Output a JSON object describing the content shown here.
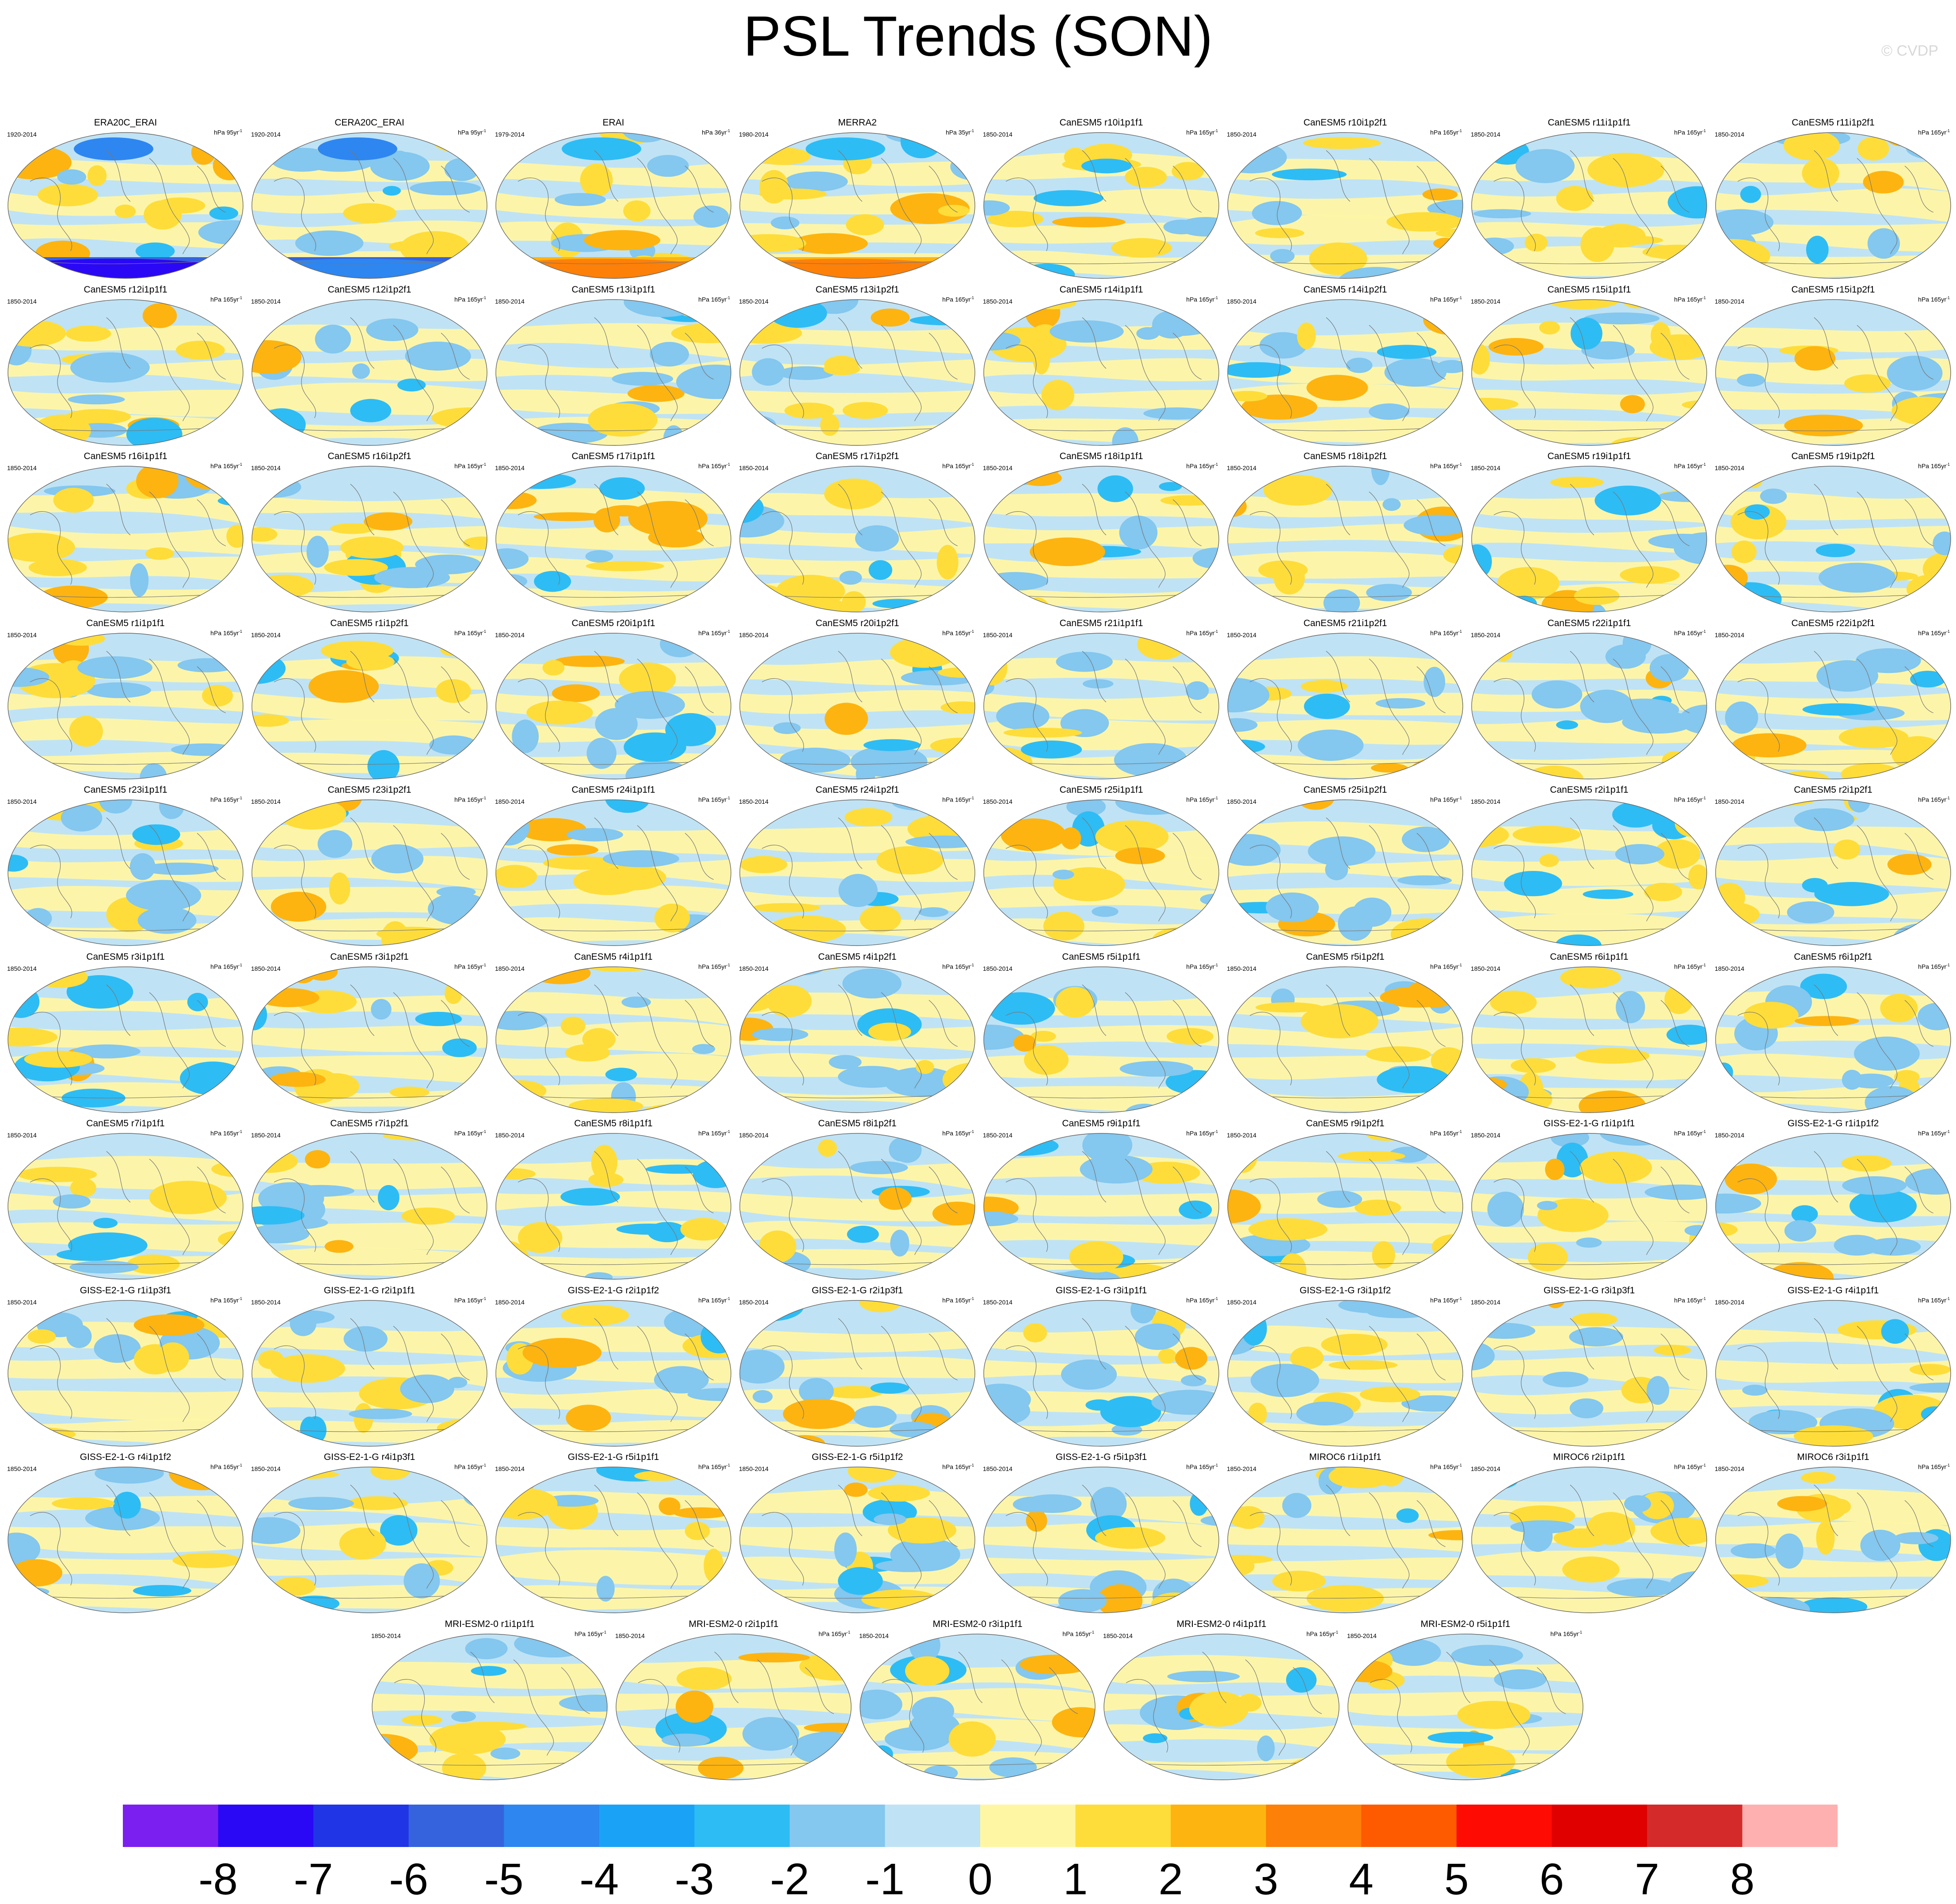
{
  "chart_data": {
    "type": "heatmap",
    "title": "PSL Trends (SON)",
    "projection": "global-map",
    "copyright": "© CVDP",
    "colorbar": {
      "labels": [
        "-8",
        "-7",
        "-6",
        "-5",
        "-4",
        "-3",
        "-2",
        "-1",
        "0",
        "1",
        "2",
        "3",
        "4",
        "5",
        "6",
        "7",
        "8"
      ],
      "colors": [
        "#7b1ff0",
        "#2a08f5",
        "#1f35e6",
        "#3563dd",
        "#2e86f0",
        "#1aa2f7",
        "#2ebcf4",
        "#84c7ef",
        "#bfe3f5",
        "#fff6a4",
        "#fedd3a",
        "#fdb410",
        "#fd8008",
        "#fe5a00",
        "#fe0b04",
        "#e00000",
        "#d42a2a",
        "#feb0b0"
      ]
    },
    "panels": [
      {
        "title": "ERA20C_ERAI",
        "years": "1920-2014",
        "units": "hPa 95yr",
        "sup": "-1"
      },
      {
        "title": "CERA20C_ERAI",
        "years": "1920-2014",
        "units": "hPa 95yr",
        "sup": "-1"
      },
      {
        "title": "ERAI",
        "years": "1979-2014",
        "units": "hPa 36yr",
        "sup": "-1"
      },
      {
        "title": "MERRA2",
        "years": "1980-2014",
        "units": "hPa 35yr",
        "sup": "-1"
      },
      {
        "title": "CanESM5 r10i1p1f1",
        "years": "1850-2014",
        "units": "hPa 165yr",
        "sup": "-1"
      },
      {
        "title": "CanESM5 r10i1p2f1",
        "years": "1850-2014",
        "units": "hPa 165yr",
        "sup": "-1"
      },
      {
        "title": "CanESM5 r11i1p1f1",
        "years": "1850-2014",
        "units": "hPa 165yr",
        "sup": "-1"
      },
      {
        "title": "CanESM5 r11i1p2f1",
        "years": "1850-2014",
        "units": "hPa 165yr",
        "sup": "-1"
      },
      {
        "title": "CanESM5 r12i1p1f1",
        "years": "1850-2014",
        "units": "hPa 165yr",
        "sup": "-1"
      },
      {
        "title": "CanESM5 r12i1p2f1",
        "years": "1850-2014",
        "units": "hPa 165yr",
        "sup": "-1"
      },
      {
        "title": "CanESM5 r13i1p1f1",
        "years": "1850-2014",
        "units": "hPa 165yr",
        "sup": "-1"
      },
      {
        "title": "CanESM5 r13i1p2f1",
        "years": "1850-2014",
        "units": "hPa 165yr",
        "sup": "-1"
      },
      {
        "title": "CanESM5 r14i1p1f1",
        "years": "1850-2014",
        "units": "hPa 165yr",
        "sup": "-1"
      },
      {
        "title": "CanESM5 r14i1p2f1",
        "years": "1850-2014",
        "units": "hPa 165yr",
        "sup": "-1"
      },
      {
        "title": "CanESM5 r15i1p1f1",
        "years": "1850-2014",
        "units": "hPa 165yr",
        "sup": "-1"
      },
      {
        "title": "CanESM5 r15i1p2f1",
        "years": "1850-2014",
        "units": "hPa 165yr",
        "sup": "-1"
      },
      {
        "title": "CanESM5 r16i1p1f1",
        "years": "1850-2014",
        "units": "hPa 165yr",
        "sup": "-1"
      },
      {
        "title": "CanESM5 r16i1p2f1",
        "years": "1850-2014",
        "units": "hPa 165yr",
        "sup": "-1"
      },
      {
        "title": "CanESM5 r17i1p1f1",
        "years": "1850-2014",
        "units": "hPa 165yr",
        "sup": "-1"
      },
      {
        "title": "CanESM5 r17i1p2f1",
        "years": "1850-2014",
        "units": "hPa 165yr",
        "sup": "-1"
      },
      {
        "title": "CanESM5 r18i1p1f1",
        "years": "1850-2014",
        "units": "hPa 165yr",
        "sup": "-1"
      },
      {
        "title": "CanESM5 r18i1p2f1",
        "years": "1850-2014",
        "units": "hPa 165yr",
        "sup": "-1"
      },
      {
        "title": "CanESM5 r19i1p1f1",
        "years": "1850-2014",
        "units": "hPa 165yr",
        "sup": "-1"
      },
      {
        "title": "CanESM5 r19i1p2f1",
        "years": "1850-2014",
        "units": "hPa 165yr",
        "sup": "-1"
      },
      {
        "title": "CanESM5 r1i1p1f1",
        "years": "1850-2014",
        "units": "hPa 165yr",
        "sup": "-1"
      },
      {
        "title": "CanESM5 r1i1p2f1",
        "years": "1850-2014",
        "units": "hPa 165yr",
        "sup": "-1"
      },
      {
        "title": "CanESM5 r20i1p1f1",
        "years": "1850-2014",
        "units": "hPa 165yr",
        "sup": "-1"
      },
      {
        "title": "CanESM5 r20i1p2f1",
        "years": "1850-2014",
        "units": "hPa 165yr",
        "sup": "-1"
      },
      {
        "title": "CanESM5 r21i1p1f1",
        "years": "1850-2014",
        "units": "hPa 165yr",
        "sup": "-1"
      },
      {
        "title": "CanESM5 r21i1p2f1",
        "years": "1850-2014",
        "units": "hPa 165yr",
        "sup": "-1"
      },
      {
        "title": "CanESM5 r22i1p1f1",
        "years": "1850-2014",
        "units": "hPa 165yr",
        "sup": "-1"
      },
      {
        "title": "CanESM5 r22i1p2f1",
        "years": "1850-2014",
        "units": "hPa 165yr",
        "sup": "-1"
      },
      {
        "title": "CanESM5 r23i1p1f1",
        "years": "1850-2014",
        "units": "hPa 165yr",
        "sup": "-1"
      },
      {
        "title": "CanESM5 r23i1p2f1",
        "years": "1850-2014",
        "units": "hPa 165yr",
        "sup": "-1"
      },
      {
        "title": "CanESM5 r24i1p1f1",
        "years": "1850-2014",
        "units": "hPa 165yr",
        "sup": "-1"
      },
      {
        "title": "CanESM5 r24i1p2f1",
        "years": "1850-2014",
        "units": "hPa 165yr",
        "sup": "-1"
      },
      {
        "title": "CanESM5 r25i1p1f1",
        "years": "1850-2014",
        "units": "hPa 165yr",
        "sup": "-1"
      },
      {
        "title": "CanESM5 r25i1p2f1",
        "years": "1850-2014",
        "units": "hPa 165yr",
        "sup": "-1"
      },
      {
        "title": "CanESM5 r2i1p1f1",
        "years": "1850-2014",
        "units": "hPa 165yr",
        "sup": "-1"
      },
      {
        "title": "CanESM5 r2i1p2f1",
        "years": "1850-2014",
        "units": "hPa 165yr",
        "sup": "-1"
      },
      {
        "title": "CanESM5 r3i1p1f1",
        "years": "1850-2014",
        "units": "hPa 165yr",
        "sup": "-1"
      },
      {
        "title": "CanESM5 r3i1p2f1",
        "years": "1850-2014",
        "units": "hPa 165yr",
        "sup": "-1"
      },
      {
        "title": "CanESM5 r4i1p1f1",
        "years": "1850-2014",
        "units": "hPa 165yr",
        "sup": "-1"
      },
      {
        "title": "CanESM5 r4i1p2f1",
        "years": "1850-2014",
        "units": "hPa 165yr",
        "sup": "-1"
      },
      {
        "title": "CanESM5 r5i1p1f1",
        "years": "1850-2014",
        "units": "hPa 165yr",
        "sup": "-1"
      },
      {
        "title": "CanESM5 r5i1p2f1",
        "years": "1850-2014",
        "units": "hPa 165yr",
        "sup": "-1"
      },
      {
        "title": "CanESM5 r6i1p1f1",
        "years": "1850-2014",
        "units": "hPa 165yr",
        "sup": "-1"
      },
      {
        "title": "CanESM5 r6i1p2f1",
        "years": "1850-2014",
        "units": "hPa 165yr",
        "sup": "-1"
      },
      {
        "title": "CanESM5 r7i1p1f1",
        "years": "1850-2014",
        "units": "hPa 165yr",
        "sup": "-1"
      },
      {
        "title": "CanESM5 r7i1p2f1",
        "years": "1850-2014",
        "units": "hPa 165yr",
        "sup": "-1"
      },
      {
        "title": "CanESM5 r8i1p1f1",
        "years": "1850-2014",
        "units": "hPa 165yr",
        "sup": "-1"
      },
      {
        "title": "CanESM5 r8i1p2f1",
        "years": "1850-2014",
        "units": "hPa 165yr",
        "sup": "-1"
      },
      {
        "title": "CanESM5 r9i1p1f1",
        "years": "1850-2014",
        "units": "hPa 165yr",
        "sup": "-1"
      },
      {
        "title": "CanESM5 r9i1p2f1",
        "years": "1850-2014",
        "units": "hPa 165yr",
        "sup": "-1"
      },
      {
        "title": "GISS-E2-1-G r1i1p1f1",
        "years": "1850-2014",
        "units": "hPa 165yr",
        "sup": "-1"
      },
      {
        "title": "GISS-E2-1-G r1i1p1f2",
        "years": "1850-2014",
        "units": "hPa 165yr",
        "sup": "-1"
      },
      {
        "title": "GISS-E2-1-G r1i1p3f1",
        "years": "1850-2014",
        "units": "hPa 165yr",
        "sup": "-1"
      },
      {
        "title": "GISS-E2-1-G r2i1p1f1",
        "years": "1850-2014",
        "units": "hPa 165yr",
        "sup": "-1"
      },
      {
        "title": "GISS-E2-1-G r2i1p1f2",
        "years": "1850-2014",
        "units": "hPa 165yr",
        "sup": "-1"
      },
      {
        "title": "GISS-E2-1-G r2i1p3f1",
        "years": "1850-2014",
        "units": "hPa 165yr",
        "sup": "-1"
      },
      {
        "title": "GISS-E2-1-G r3i1p1f1",
        "years": "1850-2014",
        "units": "hPa 165yr",
        "sup": "-1"
      },
      {
        "title": "GISS-E2-1-G r3i1p1f2",
        "years": "1850-2014",
        "units": "hPa 165yr",
        "sup": "-1"
      },
      {
        "title": "GISS-E2-1-G r3i1p3f1",
        "years": "1850-2014",
        "units": "hPa 165yr",
        "sup": "-1"
      },
      {
        "title": "GISS-E2-1-G r4i1p1f1",
        "years": "1850-2014",
        "units": "hPa 165yr",
        "sup": "-1"
      },
      {
        "title": "GISS-E2-1-G r4i1p1f2",
        "years": "1850-2014",
        "units": "hPa 165yr",
        "sup": "-1"
      },
      {
        "title": "GISS-E2-1-G r4i1p3f1",
        "years": "1850-2014",
        "units": "hPa 165yr",
        "sup": "-1"
      },
      {
        "title": "GISS-E2-1-G r5i1p1f1",
        "years": "1850-2014",
        "units": "hPa 165yr",
        "sup": "-1"
      },
      {
        "title": "GISS-E2-1-G r5i1p1f2",
        "years": "1850-2014",
        "units": "hPa 165yr",
        "sup": "-1"
      },
      {
        "title": "GISS-E2-1-G r5i1p3f1",
        "years": "1850-2014",
        "units": "hPa 165yr",
        "sup": "-1"
      },
      {
        "title": "MIROC6 r1i1p1f1",
        "years": "1850-2014",
        "units": "hPa 165yr",
        "sup": "-1"
      },
      {
        "title": "MIROC6 r2i1p1f1",
        "years": "1850-2014",
        "units": "hPa 165yr",
        "sup": "-1"
      },
      {
        "title": "MIROC6 r3i1p1f1",
        "years": "1850-2014",
        "units": "hPa 165yr",
        "sup": "-1"
      },
      {
        "title": "MRI-ESM2-0 r1i1p1f1",
        "years": "1850-2014",
        "units": "hPa 165yr",
        "sup": "-1"
      },
      {
        "title": "MRI-ESM2-0 r2i1p1f1",
        "years": "1850-2014",
        "units": "hPa 165yr",
        "sup": "-1"
      },
      {
        "title": "MRI-ESM2-0 r3i1p1f1",
        "years": "1850-2014",
        "units": "hPa 165yr",
        "sup": "-1"
      },
      {
        "title": "MRI-ESM2-0 r4i1p1f1",
        "years": "1850-2014",
        "units": "hPa 165yr",
        "sup": "-1"
      },
      {
        "title": "MRI-ESM2-0 r5i1p1f1",
        "years": "1850-2014",
        "units": "hPa 165yr",
        "sup": "-1"
      }
    ]
  }
}
